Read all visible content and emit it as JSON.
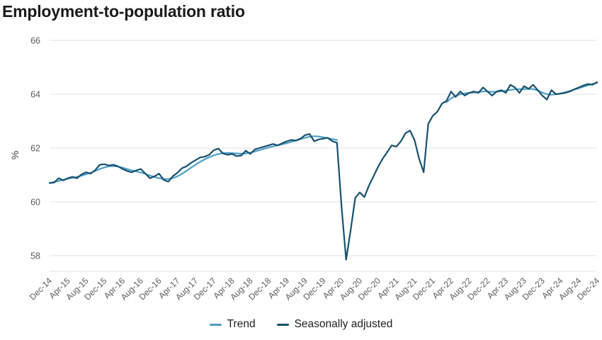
{
  "title": "Employment-to-population ratio",
  "chart_data": {
    "type": "line",
    "title": "Employment-to-population ratio",
    "xlabel": "",
    "ylabel": "%",
    "ylim": [
      57.4,
      66.2
    ],
    "yticks": [
      58,
      60,
      62,
      64,
      66
    ],
    "grid": "horizontal",
    "legend_position": "bottom",
    "x_unit": "month",
    "x_range": [
      "Dec-14",
      "Dec-24"
    ],
    "xtick_labels": [
      "Dec-14",
      "Apr-15",
      "Aug-15",
      "Dec-15",
      "Apr-16",
      "Aug-16",
      "Dec-16",
      "Apr-17",
      "Aug-17",
      "Dec-17",
      "Apr-18",
      "Aug-18",
      "Dec-18",
      "Apr-19",
      "Aug-19",
      "Dec-19",
      "Apr-20",
      "Aug-20",
      "Dec-20",
      "Apr-21",
      "Aug-21",
      "Dec-21",
      "Apr-22",
      "Aug-22",
      "Dec-22",
      "Apr-23",
      "Aug-23",
      "Dec-23",
      "Apr-24",
      "Aug-24",
      "Dec-24"
    ],
    "xtick_month_positions": [
      0,
      4,
      8,
      12,
      16,
      20,
      24,
      28,
      32,
      36,
      40,
      44,
      48,
      52,
      56,
      60,
      64,
      68,
      72,
      76,
      80,
      84,
      88,
      92,
      96,
      100,
      104,
      108,
      112,
      116,
      120
    ],
    "series": [
      {
        "name": "Trend",
        "color": "#4f9fc6",
        "note": "suspended between Apr-20 and Feb-22",
        "values": [
          60.7,
          60.74,
          60.78,
          60.82,
          60.86,
          60.89,
          60.93,
          60.97,
          61.02,
          61.08,
          61.15,
          61.22,
          61.28,
          61.32,
          61.33,
          61.31,
          61.27,
          61.22,
          61.17,
          61.13,
          61.09,
          61.04,
          60.98,
          60.92,
          60.88,
          60.85,
          60.85,
          60.88,
          60.95,
          61.04,
          61.15,
          61.27,
          61.38,
          61.49,
          61.58,
          61.66,
          61.73,
          61.78,
          61.81,
          61.82,
          61.81,
          61.8,
          61.79,
          61.8,
          61.83,
          61.87,
          61.92,
          61.97,
          62.02,
          62.06,
          62.1,
          62.14,
          62.18,
          62.23,
          62.28,
          62.33,
          62.38,
          62.42,
          62.44,
          62.43,
          62.4,
          62.37,
          62.33,
          62.3,
          null,
          null,
          null,
          null,
          null,
          null,
          null,
          null,
          null,
          null,
          null,
          null,
          null,
          null,
          null,
          null,
          null,
          null,
          null,
          null,
          null,
          null,
          null,
          63.7,
          63.85,
          63.94,
          64.0,
          64.03,
          64.05,
          64.06,
          64.08,
          64.1,
          64.1,
          64.09,
          64.09,
          64.11,
          64.13,
          64.16,
          64.18,
          64.19,
          64.19,
          64.2,
          64.19,
          64.14,
          64.06,
          64.0,
          63.98,
          64.0,
          64.03,
          64.07,
          64.12,
          64.17,
          64.22,
          64.28,
          64.33,
          64.38,
          64.42
        ]
      },
      {
        "name": "Seasonally adjusted",
        "color": "#17506f",
        "values": [
          60.7,
          60.72,
          60.88,
          60.8,
          60.88,
          60.93,
          60.88,
          61.02,
          61.1,
          61.05,
          61.18,
          61.38,
          61.4,
          61.35,
          61.38,
          61.32,
          61.22,
          61.15,
          61.1,
          61.17,
          61.22,
          61.05,
          60.88,
          60.95,
          61.05,
          60.82,
          60.75,
          60.95,
          61.08,
          61.25,
          61.32,
          61.45,
          61.55,
          61.65,
          61.68,
          61.75,
          61.92,
          61.98,
          61.8,
          61.75,
          61.78,
          61.7,
          61.72,
          61.9,
          61.78,
          61.95,
          62.0,
          62.05,
          62.1,
          62.15,
          62.1,
          62.18,
          62.25,
          62.3,
          62.28,
          62.35,
          62.48,
          62.52,
          62.25,
          62.32,
          62.35,
          62.38,
          62.25,
          62.2,
          59.8,
          57.85,
          58.95,
          60.15,
          60.35,
          60.18,
          60.6,
          60.95,
          61.3,
          61.6,
          61.85,
          62.1,
          62.05,
          62.25,
          62.55,
          62.65,
          62.3,
          61.6,
          61.1,
          62.9,
          63.2,
          63.35,
          63.65,
          63.75,
          64.1,
          63.9,
          64.1,
          63.95,
          64.05,
          64.1,
          64.05,
          64.25,
          64.1,
          63.95,
          64.1,
          64.15,
          64.05,
          64.35,
          64.25,
          64.05,
          64.3,
          64.2,
          64.35,
          64.15,
          63.95,
          63.8,
          64.15,
          64.0,
          64.02,
          64.05,
          64.1,
          64.18,
          64.25,
          64.32,
          64.38,
          64.35,
          64.45
        ]
      }
    ],
    "colors": {
      "gridline": "#e3e3e3",
      "tick_label": "#5c5c5c",
      "title": "#1a1a1a"
    }
  }
}
